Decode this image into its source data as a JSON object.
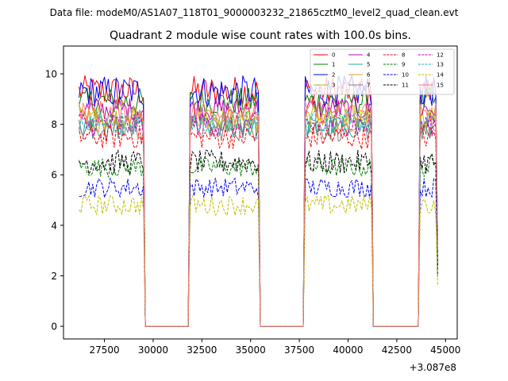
{
  "suptitle": "Data file: modeM0/AS1A07_118T01_9000003232_21865cztM0_level2_quad_clean.evt",
  "chart_data": {
    "type": "line",
    "title": "Quadrant 2 module wise count rates with 100.0s bins.",
    "xlabel": "",
    "ylabel": "",
    "x_offset_label": "+3.087e8",
    "xlim": [
      25400,
      45600
    ],
    "ylim": [
      -0.5,
      11.1
    ],
    "xticks": [
      27500,
      30000,
      32500,
      35000,
      37500,
      40000,
      42500,
      45000
    ],
    "xtick_labels": [
      "27500",
      "30000",
      "32500",
      "35000",
      "37500",
      "40000",
      "42500",
      "45000"
    ],
    "yticks": [
      0,
      2,
      4,
      6,
      8,
      10
    ],
    "ytick_labels": [
      "0",
      "2",
      "4",
      "6",
      "8",
      "10"
    ],
    "segments": [
      {
        "start": 26200,
        "end": 29500
      },
      {
        "start": 31900,
        "end": 35400
      },
      {
        "start": 37800,
        "end": 41200
      },
      {
        "start": 43700,
        "end": 44500
      }
    ],
    "gap_level": 0,
    "legend_location": "upper right",
    "series": [
      {
        "name": "0",
        "color": "#ff0000",
        "style": "solid",
        "mean": 9.3,
        "noise": 0.4
      },
      {
        "name": "1",
        "color": "#008000",
        "style": "solid",
        "mean": 8.9,
        "noise": 0.35
      },
      {
        "name": "2",
        "color": "#0000ff",
        "style": "solid",
        "mean": 9.3,
        "noise": 0.4
      },
      {
        "name": "3",
        "color": "#bfbf00",
        "style": "solid",
        "mean": 8.3,
        "noise": 0.3
      },
      {
        "name": "4",
        "color": "#bf00bf",
        "style": "solid",
        "mean": 8.6,
        "noise": 0.3
      },
      {
        "name": "5",
        "color": "#20b2aa",
        "style": "solid",
        "mean": 7.9,
        "noise": 0.3
      },
      {
        "name": "6",
        "color": "#daa520",
        "style": "solid",
        "mean": 8.2,
        "noise": 0.3
      },
      {
        "name": "7",
        "color": "#808080",
        "style": "solid",
        "mean": 7.8,
        "noise": 0.3
      },
      {
        "name": "8",
        "color": "#ff0000",
        "style": "dashed",
        "mean": 7.5,
        "noise": 0.3
      },
      {
        "name": "9",
        "color": "#008000",
        "style": "dashed",
        "mean": 6.3,
        "noise": 0.25
      },
      {
        "name": "10",
        "color": "#0000ff",
        "style": "dashed",
        "mean": 5.5,
        "noise": 0.25
      },
      {
        "name": "11",
        "color": "#000000",
        "style": "dashed",
        "mean": 6.5,
        "noise": 0.3
      },
      {
        "name": "12",
        "color": "#bf00bf",
        "style": "dashed",
        "mean": 8.0,
        "noise": 0.3
      },
      {
        "name": "13",
        "color": "#20b2aa",
        "style": "dashed",
        "mean": 8.1,
        "noise": 0.3
      },
      {
        "name": "14",
        "color": "#bfbf00",
        "style": "dashed",
        "mean": 4.8,
        "noise": 0.25
      },
      {
        "name": "15",
        "color": "#fa8072",
        "style": "solid",
        "mean": 8.5,
        "noise": 0.3
      }
    ]
  }
}
